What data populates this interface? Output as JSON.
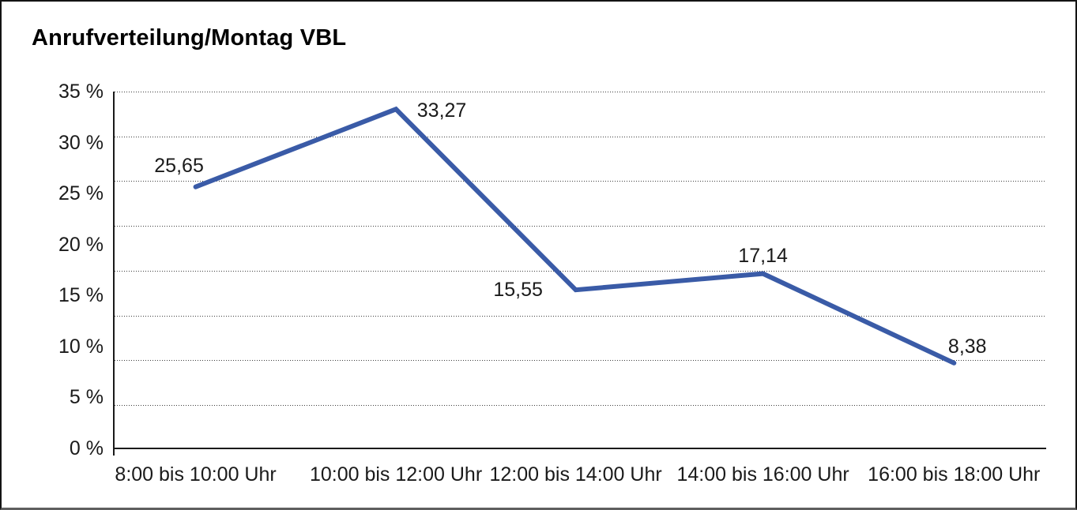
{
  "title": "Anrufverteilung/Montag VBL",
  "chart_data": {
    "type": "line",
    "title": "Anrufverteilung/Montag VBL",
    "categories": [
      "8:00 bis 10:00 Uhr",
      "10:00 bis 12:00 Uhr",
      "12:00 bis 14:00 Uhr",
      "14:00 bis 16:00 Uhr",
      "16:00 bis 18:00 Uhr"
    ],
    "values": [
      25.65,
      33.27,
      15.55,
      17.14,
      8.38
    ],
    "point_labels": [
      "25,65",
      "33,27",
      "15,55",
      "17,14",
      "8,38"
    ],
    "series_name": "Anrufverteilung Montag VBL",
    "xlabel": "",
    "ylabel": "",
    "ylim": [
      0,
      35
    ],
    "ytick_step": 5,
    "yticks": [
      "35 %",
      "30 %",
      "25 %",
      "20 %",
      "15 %",
      "10 %",
      "5 %",
      "0 %"
    ],
    "ytick_values": [
      35,
      30,
      25,
      20,
      15,
      10,
      5,
      0
    ],
    "grid": "horizontal-dotted",
    "gridline_count": 8,
    "legend": "none",
    "line_color": "#3A5BA7",
    "axis_color": "#1a1a1a",
    "label_color": "#1a1a1a"
  }
}
